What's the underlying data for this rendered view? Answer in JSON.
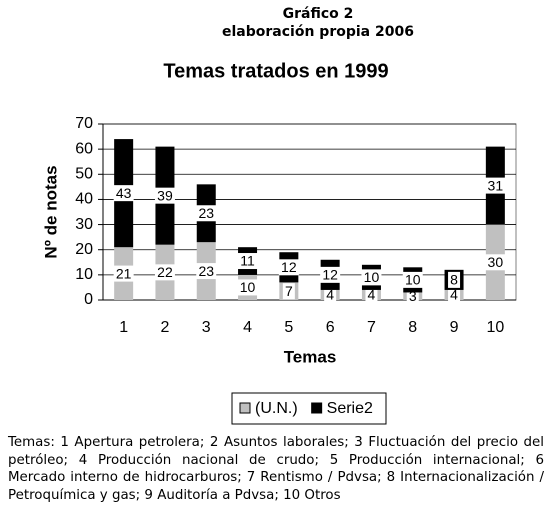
{
  "header": {
    "line1": "Gráfico 2",
    "line2": "elaboración propia 2006"
  },
  "chart_data": {
    "type": "bar",
    "stacked": true,
    "title": "Temas tratados en 1999",
    "xlabel": "Temas",
    "ylabel": "Nº de notas",
    "categories": [
      "1",
      "2",
      "3",
      "4",
      "5",
      "6",
      "7",
      "8",
      "9",
      "10"
    ],
    "series": [
      {
        "name": "(U.N.)",
        "color": "#c0c0c0",
        "values": [
          21,
          22,
          23,
          10,
          7,
          4,
          4,
          3,
          4,
          30
        ]
      },
      {
        "name": "Serie2",
        "color": "#000000",
        "values": [
          43,
          39,
          23,
          11,
          12,
          12,
          10,
          10,
          8,
          31
        ]
      }
    ],
    "ylim": [
      0,
      70
    ],
    "yticks": [
      0,
      10,
      20,
      30,
      40,
      50,
      60,
      70
    ],
    "grid": true,
    "legend": "bottom"
  },
  "caption": "Temas: 1 Apertura petrolera; 2 Asuntos laborales; 3 Fluctuación del precio del petróleo; 4 Producción nacional de crudo; 5 Producción internacional; 6 Mercado interno de hidrocarburos; 7 Rentismo / Pdvsa; 8 Internacionalización / Petroquímica y gas; 9 Auditoría a Pdvsa; 10 Otros"
}
